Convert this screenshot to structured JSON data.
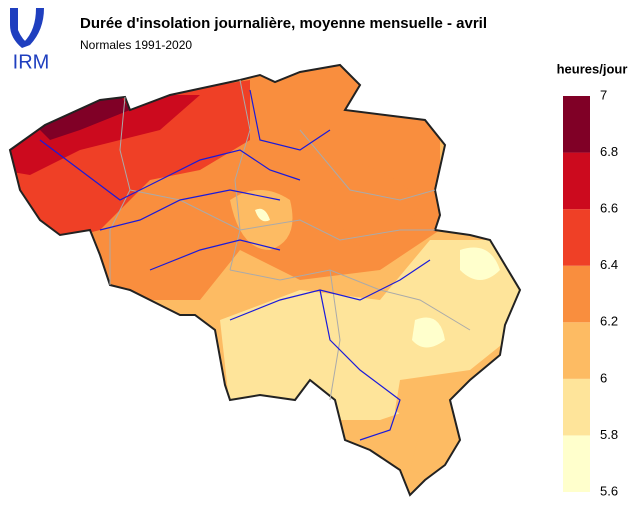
{
  "header": {
    "logo": "IRM",
    "title": "Durée d'insolation journalière, moyenne mensuelle - avril",
    "subtitle": "Normales 1991-2020"
  },
  "legend": {
    "title": "heures/jour",
    "lim": [
      5.6,
      7
    ],
    "ticks": [
      5.6,
      5.8,
      6,
      6.2,
      6.4,
      6.6,
      6.8,
      7
    ],
    "colors": [
      "#ffffcc",
      "#fee49a",
      "#fdbb63",
      "#f98e3e",
      "#ef4026",
      "#cc0a1e",
      "#800026"
    ]
  }
}
